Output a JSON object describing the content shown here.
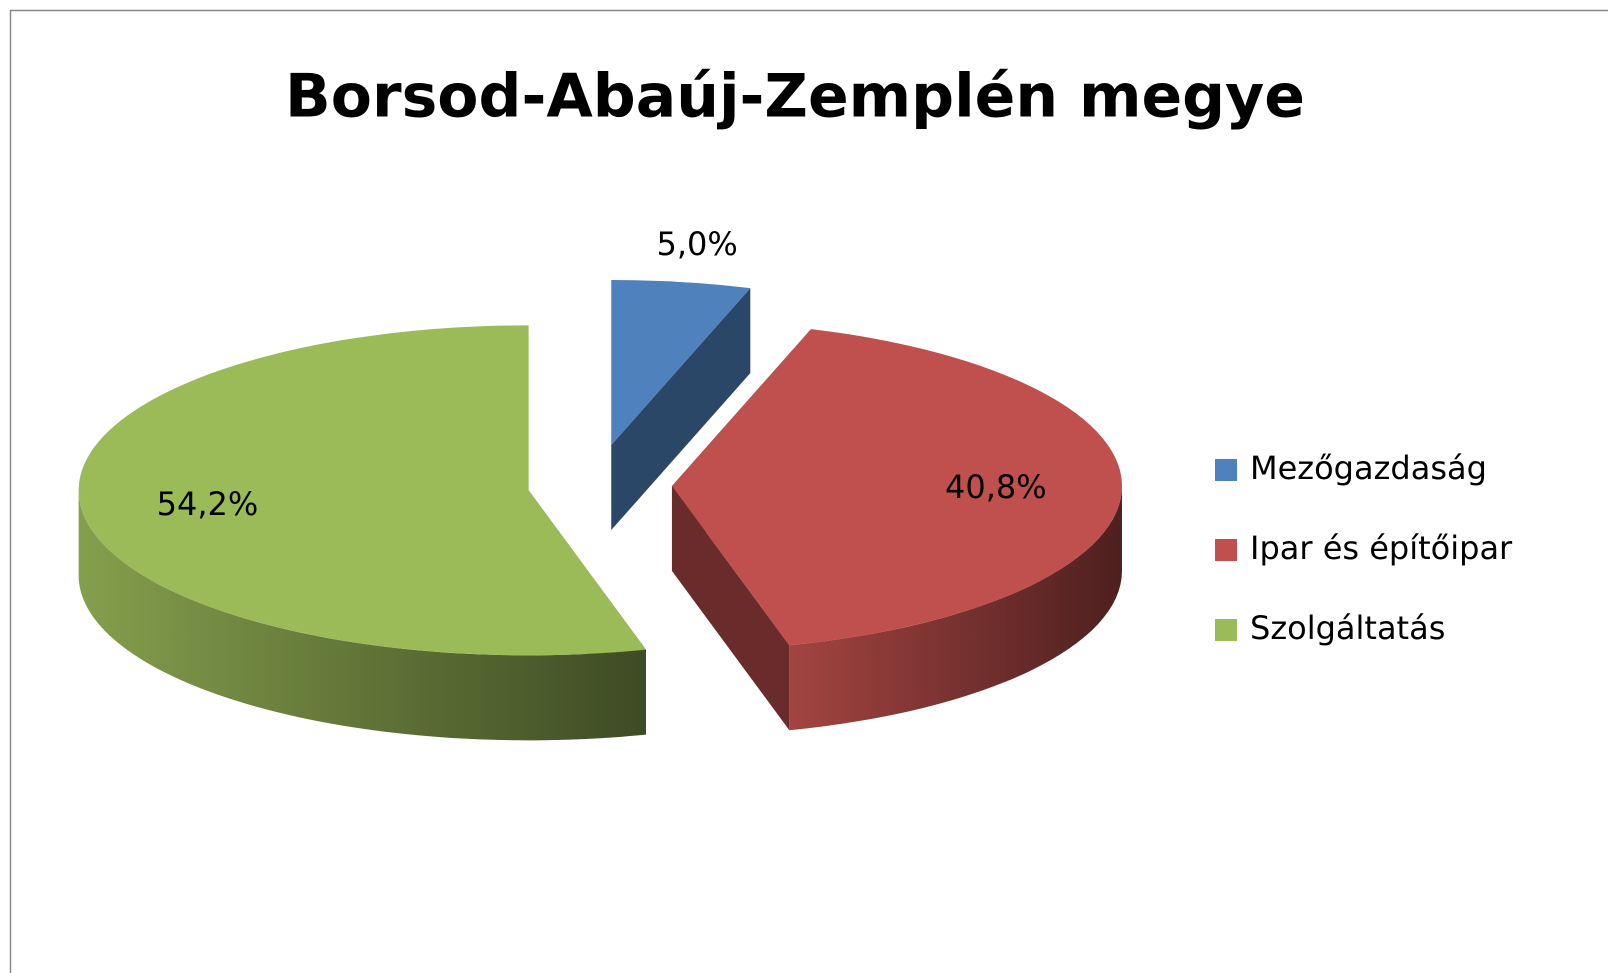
{
  "chart_data": {
    "type": "pie",
    "title": "Borsod-Abaúj-Zemplén megye",
    "categories": [
      "Mezőgazdaság",
      "Ipar és építőipar",
      "Szolgáltatás"
    ],
    "values": [
      5.0,
      40.8,
      54.2
    ],
    "value_labels": [
      "5,0%",
      "40,8%",
      "54,2%"
    ],
    "colors": [
      "#4f81bd",
      "#c0504d",
      "#9bbb59"
    ],
    "legend": "right",
    "exploded": true,
    "3d": true
  }
}
